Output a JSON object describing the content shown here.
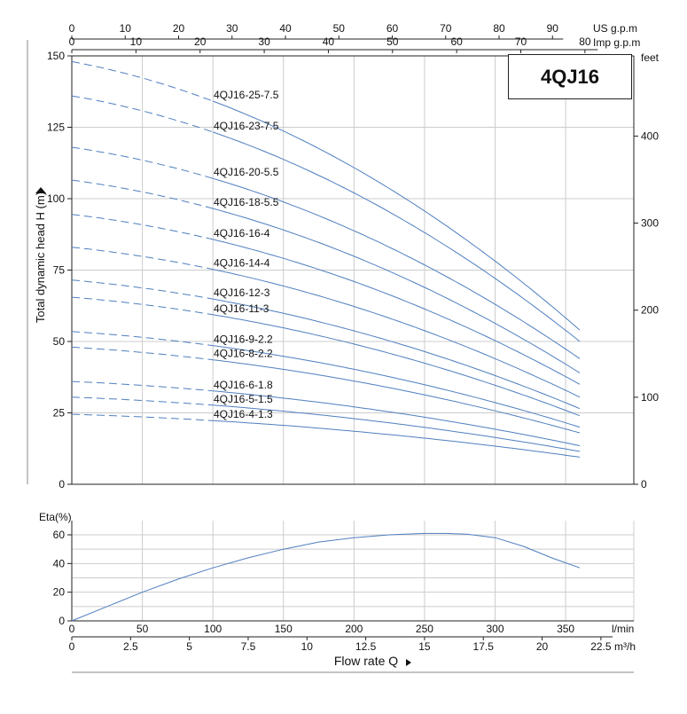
{
  "model_title": "4QJ16",
  "colors": {
    "curve": "#4f7fbf",
    "grid": "#cccccc",
    "axis": "#222222"
  },
  "chart_data": [
    {
      "type": "line",
      "name": "head",
      "ylabel": "Total dynamic head H (m)",
      "y_unit_right": "feet",
      "x_unit_top_us": "US g.p.m",
      "x_unit_top_imp": "Imp g.p.m",
      "ylim": [
        0,
        150
      ],
      "yticks": [
        0,
        25,
        50,
        75,
        100,
        125,
        150
      ],
      "y_right_ticks": [
        0,
        100,
        200,
        300,
        400
      ],
      "x_lpm_range": [
        0,
        360
      ],
      "x_grid_lpm": [
        50,
        100,
        150,
        200,
        250,
        300,
        350
      ],
      "us_gpm_ticks": [
        0,
        10,
        20,
        30,
        40,
        50,
        60,
        70,
        80,
        90
      ],
      "imp_gpm_ticks": [
        0,
        10,
        20,
        30,
        40,
        50,
        60,
        70,
        80
      ],
      "dashed_until_lpm": 100,
      "curve_end_lpm": 360,
      "grid": true,
      "series": [
        {
          "name": "4QJ16-25-7.5",
          "h0": 148,
          "h_end": 54
        },
        {
          "name": "4QJ16-23-7.5",
          "h0": 136,
          "h_end": 50
        },
        {
          "name": "4QJ16-20-5.5",
          "h0": 118,
          "h_end": 44
        },
        {
          "name": "4QJ16-18-5.5",
          "h0": 106.5,
          "h_end": 39
        },
        {
          "name": "4QJ16-16-4",
          "h0": 94.5,
          "h_end": 35
        },
        {
          "name": "4QJ16-14-4",
          "h0": 83,
          "h_end": 30.5
        },
        {
          "name": "4QJ16-12-3",
          "h0": 71.5,
          "h_end": 26.5
        },
        {
          "name": "4QJ16-11-3",
          "h0": 65.5,
          "h_end": 24
        },
        {
          "name": "4QJ16-9-2.2",
          "h0": 53.5,
          "h_end": 20
        },
        {
          "name": "4QJ16-8-2.2",
          "h0": 48,
          "h_end": 18
        },
        {
          "name": "4QJ16-6-1.8",
          "h0": 36,
          "h_end": 13.5
        },
        {
          "name": "4QJ16-5-1.5",
          "h0": 30.5,
          "h_end": 11.5
        },
        {
          "name": "4QJ16-4-1.3",
          "h0": 24.5,
          "h_end": 9.5
        }
      ]
    },
    {
      "type": "line",
      "name": "efficiency",
      "ylabel": "Eta(%)",
      "xlabel": "Flow rate Q",
      "x_unit_lpm": "l/min",
      "x_unit_m3h": "m³/h",
      "ylim": [
        0,
        65
      ],
      "yticks": [
        0,
        20,
        40,
        60
      ],
      "x_lpm_ticks": [
        0,
        50,
        100,
        150,
        200,
        250,
        300,
        350
      ],
      "x_m3h_ticks": [
        0,
        2.5,
        5,
        7.5,
        10,
        12.5,
        15,
        17.5,
        20,
        22.5
      ],
      "x": [
        0,
        25,
        50,
        75,
        100,
        125,
        150,
        175,
        200,
        225,
        250,
        265,
        280,
        300,
        320,
        340,
        360
      ],
      "y": [
        0,
        10,
        20,
        29,
        37,
        44,
        50,
        55,
        58,
        60,
        61,
        61,
        60.5,
        58,
        52,
        44,
        37
      ]
    }
  ]
}
